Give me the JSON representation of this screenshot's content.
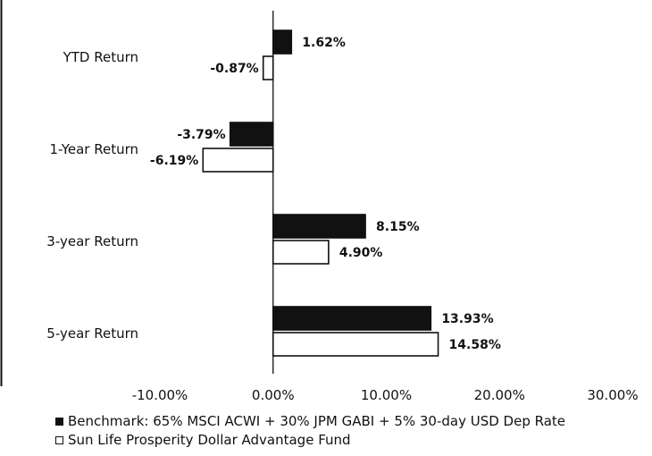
{
  "chart_data": {
    "type": "bar",
    "orientation": "horizontal",
    "categories": [
      "YTD Return",
      "1-Year Return",
      "3-year Return",
      "5-year Return"
    ],
    "series": [
      {
        "name": "Benchmark: 65% MSCI ACWI + 30% JPM GABI + 5% 30-day USD Dep Rate",
        "values": [
          1.62,
          -3.79,
          8.15,
          13.93
        ],
        "labels": [
          "1.62%",
          "-3.79%",
          "8.15%",
          "13.93%"
        ],
        "color": "#111111"
      },
      {
        "name": "Sun Life Prosperity Dollar Advantage Fund",
        "values": [
          -0.87,
          -6.19,
          4.9,
          14.58
        ],
        "labels": [
          "-0.87%",
          "-6.19%",
          "4.90%",
          "14.58%"
        ],
        "color": "#ffffff"
      }
    ],
    "xlim": [
      -10,
      30
    ],
    "xticks": [
      "-10.00%",
      "0.00%",
      "10.00%",
      "20.00%",
      "30.00%"
    ],
    "title": "",
    "xlabel": "",
    "ylabel": "",
    "grid": false,
    "legend_position": "bottom-left"
  }
}
